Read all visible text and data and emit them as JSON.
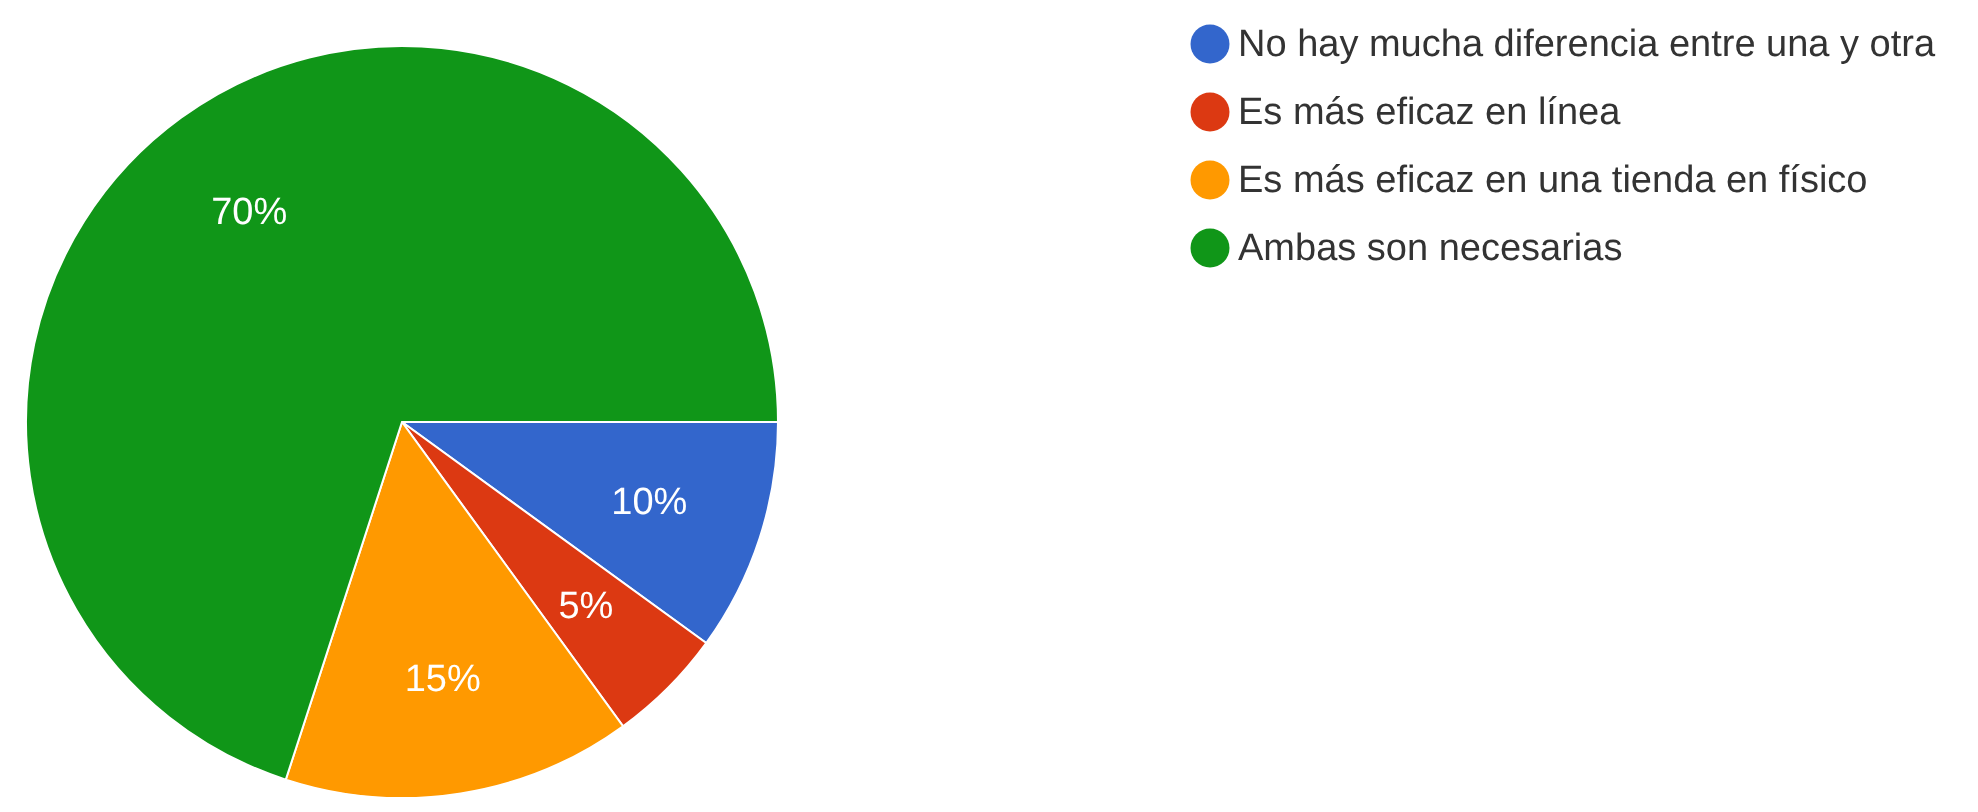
{
  "chart_data": {
    "type": "pie",
    "categories": [
      "No hay mucha diferencia entre una y otra",
      "Es más eficaz en línea",
      "Es más eficaz en una tienda en físico",
      "Ambas son necesarias"
    ],
    "values": [
      10,
      5,
      15,
      70
    ],
    "colors": [
      "#3366cc",
      "#dc3912",
      "#ff9900",
      "#109618"
    ],
    "value_labels": [
      "10%",
      "5%",
      "15%",
      "70%"
    ],
    "legend": "right"
  }
}
